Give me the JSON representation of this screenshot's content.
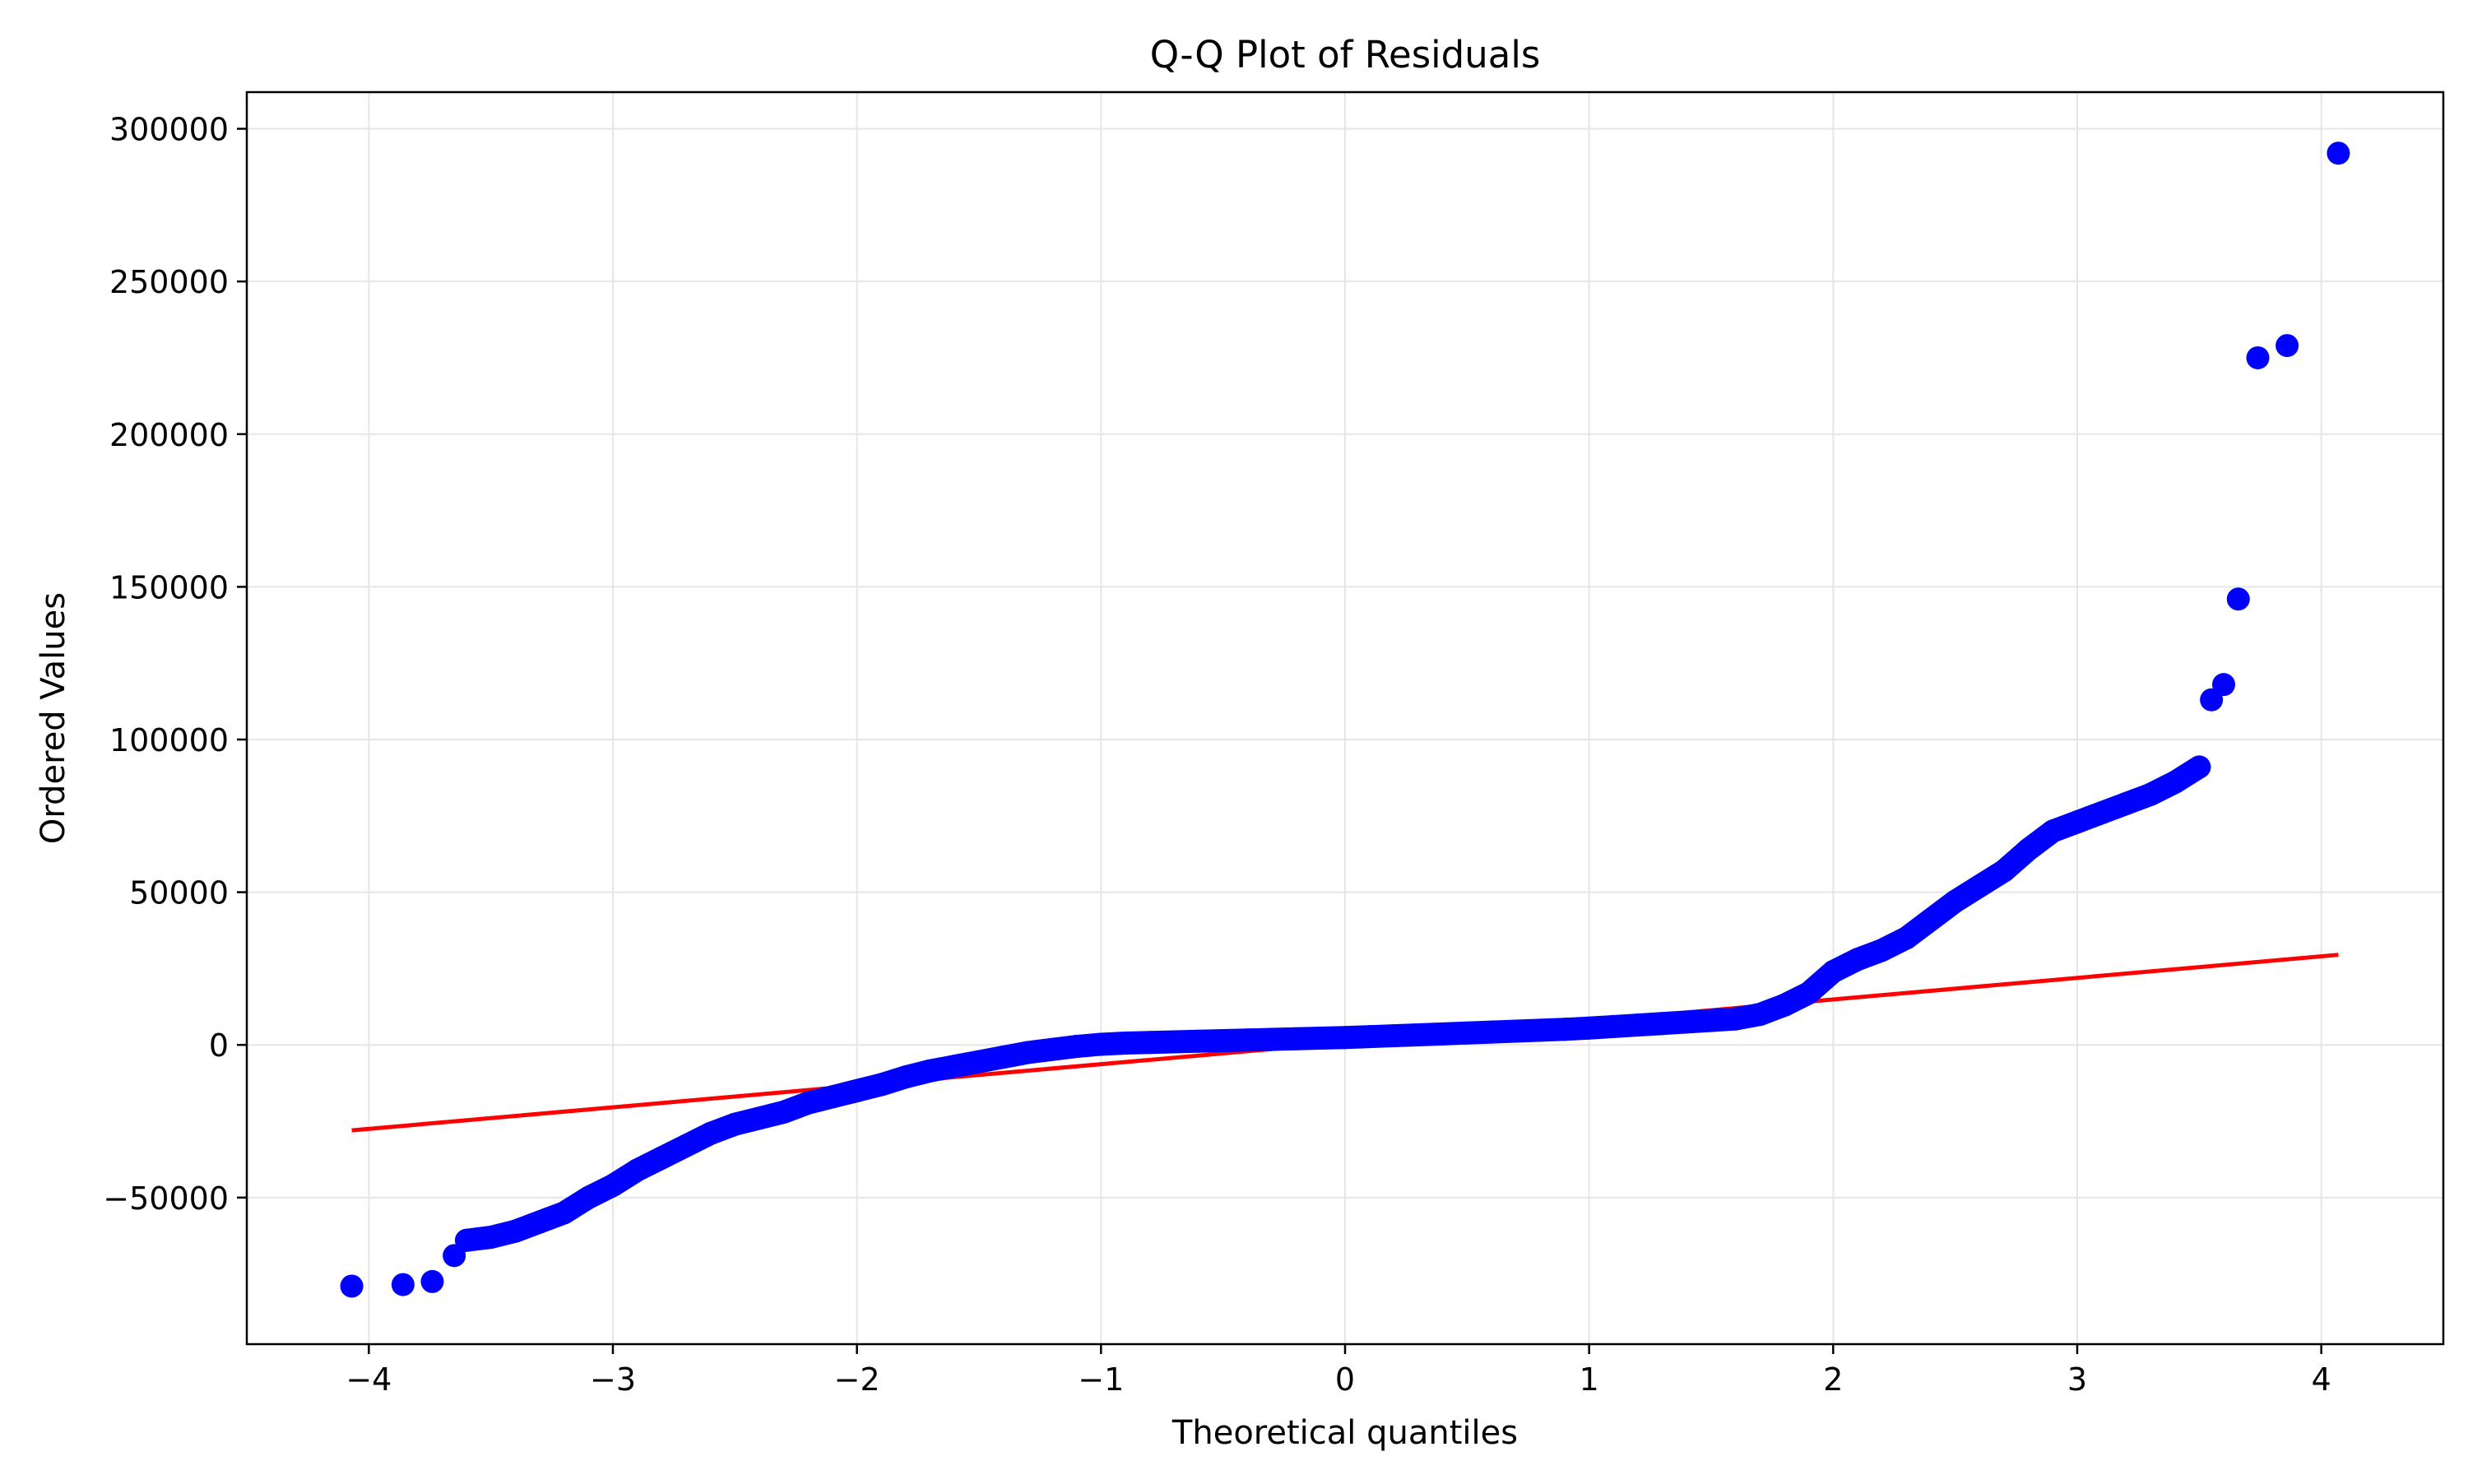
{
  "chart_data": {
    "type": "scatter",
    "title": "Q-Q Plot of Residuals",
    "xlabel": "Theoretical quantiles",
    "ylabel": "Ordered Values",
    "xlim": [
      -4.5,
      4.5
    ],
    "ylim": [
      -98000,
      312000
    ],
    "grid": true,
    "x_ticks": [
      -4,
      -3,
      -2,
      -1,
      0,
      1,
      2,
      3,
      4
    ],
    "x_tick_labels": [
      "−4",
      "−3",
      "−2",
      "−1",
      "0",
      "1",
      "2",
      "3",
      "4"
    ],
    "y_ticks": [
      -50000,
      0,
      50000,
      100000,
      150000,
      200000,
      250000,
      300000
    ],
    "y_tick_labels": [
      "−50000",
      "0",
      "50000",
      "100000",
      "150000",
      "200000",
      "250000",
      "300000"
    ],
    "colors": {
      "points": "#0000ff",
      "fit_line": "#ff0000",
      "grid": "#e6e6e6",
      "axes": "#000000"
    },
    "series": [
      {
        "kind": "points",
        "x": [
          -4.07,
          -3.86,
          -3.74,
          -3.65,
          -3.6,
          -3.5,
          -3.4,
          -3.3,
          -3.2,
          -3.1,
          -3.0,
          -2.9,
          -2.8,
          -2.7,
          -2.6,
          -2.5,
          -2.4,
          -2.3,
          -2.2,
          -2.1,
          -2.0,
          -1.9,
          -1.8,
          -1.7,
          -1.6,
          -1.5,
          -1.4,
          -1.3,
          -1.2,
          -1.1,
          -1.0,
          -0.9,
          -0.8,
          -0.7,
          -0.6,
          -0.5,
          -0.4,
          -0.3,
          -0.2,
          -0.1,
          0.0,
          0.1,
          0.2,
          0.3,
          0.4,
          0.5,
          0.6,
          0.7,
          0.8,
          0.9,
          1.0,
          1.1,
          1.2,
          1.3,
          1.4,
          1.5,
          1.6,
          1.7,
          1.8,
          1.9,
          2.0,
          2.1,
          2.2,
          2.3,
          2.4,
          2.5,
          2.6,
          2.7,
          2.8,
          2.9,
          3.0,
          3.1,
          3.2,
          3.3,
          3.4,
          3.5,
          3.55,
          3.6,
          3.66,
          3.74,
          3.86,
          4.07
        ],
        "y": [
          -79000,
          -78500,
          -77500,
          -69000,
          -64000,
          -63000,
          -61000,
          -58000,
          -55000,
          -50000,
          -46000,
          -41000,
          -37000,
          -33000,
          -29000,
          -26000,
          -24000,
          -22000,
          -19000,
          -17000,
          -15000,
          -13000,
          -10500,
          -8500,
          -7000,
          -5500,
          -4000,
          -2500,
          -1500,
          -500,
          200,
          600,
          800,
          1000,
          1200,
          1400,
          1600,
          1800,
          2000,
          2200,
          2400,
          2700,
          3000,
          3300,
          3600,
          3900,
          4200,
          4500,
          4800,
          5100,
          5500,
          6000,
          6500,
          7000,
          7500,
          8000,
          8500,
          10000,
          13000,
          17000,
          24000,
          28000,
          31000,
          35000,
          41000,
          47000,
          52000,
          57000,
          64000,
          70000,
          73000,
          76000,
          79000,
          82000,
          86000,
          91000,
          113000,
          118000,
          146000,
          225000,
          229000,
          292000
        ]
      },
      {
        "kind": "fit-line",
        "x": [
          -4.07,
          4.07
        ],
        "y": [
          -28000,
          29500
        ]
      }
    ]
  }
}
